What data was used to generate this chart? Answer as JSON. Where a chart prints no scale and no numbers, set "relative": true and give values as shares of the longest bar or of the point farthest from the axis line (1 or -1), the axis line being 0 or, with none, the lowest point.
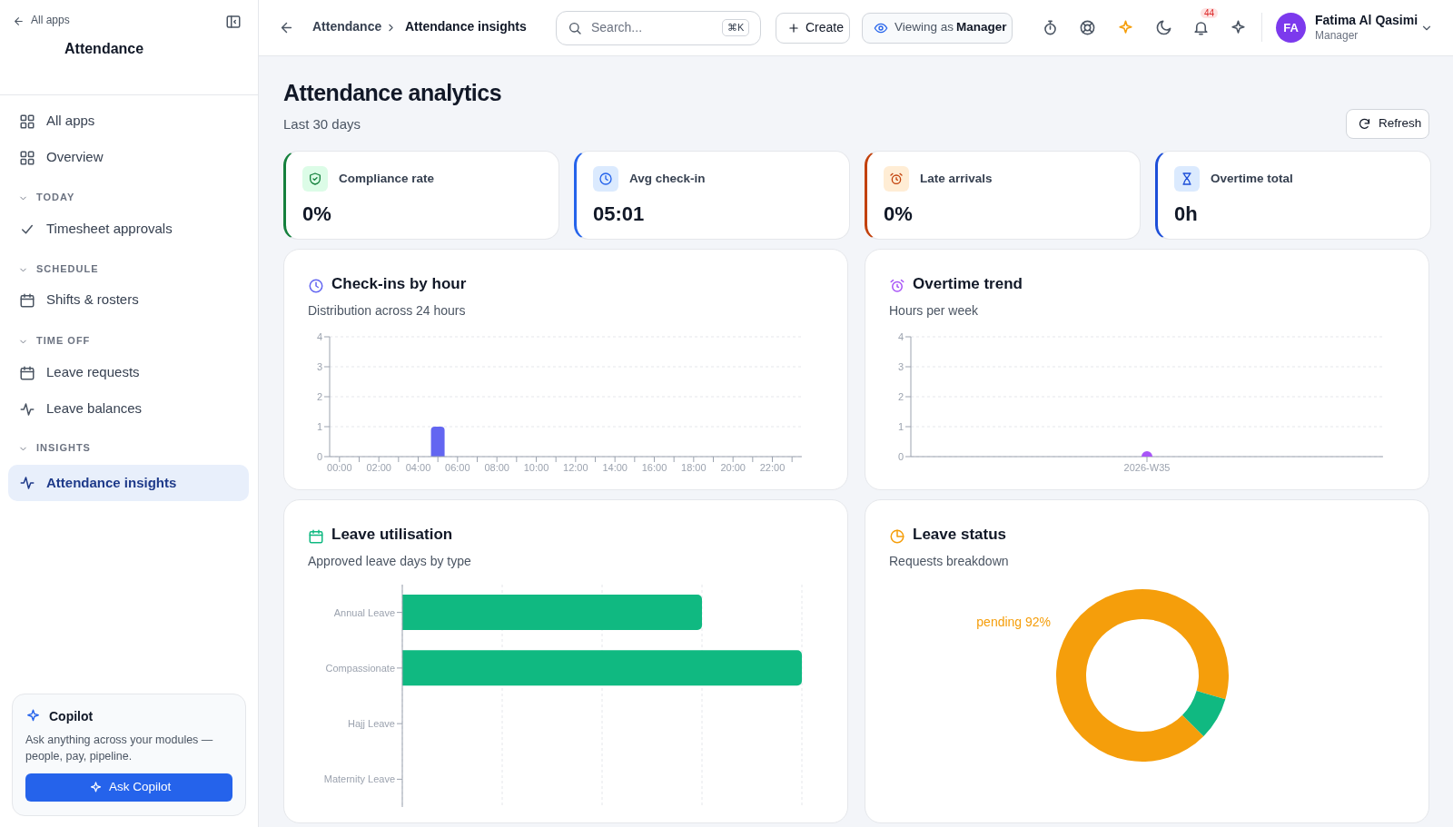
{
  "chart_data": [
    {
      "type": "other",
      "title": "Attendance",
      "annotations": [
        "All apps",
        "All apps",
        "Overview",
        "TODAY",
        "Timesheet approvals",
        "SCHEDULE",
        "Shifts & rosters",
        "TIME OFF",
        "Leave requests",
        "Leave balances",
        "INSIGHTS",
        "Attendance insights",
        "Copilot",
        "Ask anything across your modules — people, pay, pipeline.",
        "Ask Copilot"
      ]
    },
    {
      "type": "other",
      "annotations": [
        "Attendance",
        "Attendance insights",
        "Search...",
        "⌘K",
        "Create",
        "Viewing as",
        "Manager",
        "44",
        "FA",
        "Fatima Al Qasimi",
        "Manager"
      ]
    },
    {
      "type": "other",
      "title": "Attendance analytics",
      "subtitle": "Last 30 days",
      "annotations": [
        "Refresh"
      ]
    },
    {
      "type": "other",
      "title": "Compliance rate",
      "annotations": [
        "0%"
      ]
    },
    {
      "type": "other",
      "title": "Avg check-in",
      "annotations": [
        "05:01"
      ]
    },
    {
      "type": "other",
      "title": "Late arrivals",
      "annotations": [
        "0%"
      ]
    },
    {
      "type": "other",
      "title": "Overtime total",
      "annotations": [
        "0h"
      ]
    },
    {
      "type": "bar",
      "title": "Check-ins by hour",
      "subtitle": "Distribution across 24 hours",
      "categories": [
        "00:00",
        null,
        "02:00",
        null,
        "04:00",
        null,
        "06:00",
        null,
        "08:00",
        null,
        "10:00",
        null,
        "12:00",
        null,
        "14:00",
        null,
        "16:00",
        null,
        "18:00",
        null,
        "20:00",
        null,
        "22:00",
        null
      ],
      "values": [
        0,
        0,
        0,
        0,
        0,
        1,
        0,
        0,
        0,
        0,
        0,
        0,
        0,
        0,
        0,
        0,
        0,
        0,
        0,
        0,
        0,
        0,
        0,
        0
      ],
      "color": "#6366f1",
      "ylim": [
        0,
        4
      ],
      "yticks": [
        0,
        1,
        2,
        3,
        4
      ],
      "grid": "y"
    },
    {
      "type": "line",
      "title": "Overtime trend",
      "subtitle": "Hours per week",
      "categories": [
        "2026-W35"
      ],
      "values": [
        0
      ],
      "color": "#a855f7",
      "ylim": [
        0,
        4
      ],
      "yticks": [
        0,
        1,
        2,
        3,
        4
      ],
      "grid": "y",
      "marker": "circle"
    },
    {
      "type": "bar",
      "orientation": "horizontal",
      "relative": true,
      "title": "Leave utilisation",
      "subtitle": "Approved leave days by type",
      "categories": [
        "Annual Leave",
        "Compassionate",
        "Hajj Leave",
        "Maternity Leave"
      ],
      "values": [
        0.75,
        1,
        0,
        null
      ],
      "color": "#10b981",
      "grid": "x"
    },
    {
      "type": "donut",
      "title": "Leave status",
      "subtitle": "Requests breakdown",
      "categories": [
        "pending",
        null
      ],
      "values": [
        92,
        8
      ],
      "colors": [
        "#f59e0b",
        "#10b981"
      ],
      "value_labels": [
        "92%",
        null
      ]
    }
  ]
}
